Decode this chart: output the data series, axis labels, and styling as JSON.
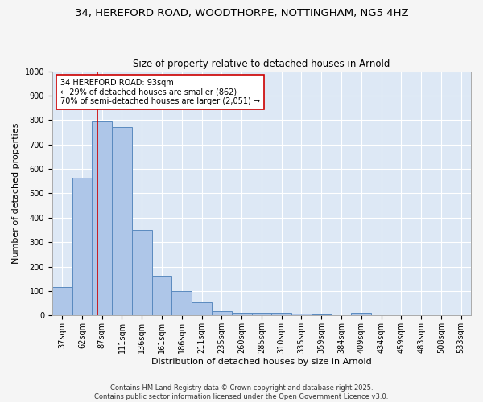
{
  "title_line1": "34, HEREFORD ROAD, WOODTHORPE, NOTTINGHAM, NG5 4HZ",
  "title_line2": "Size of property relative to detached houses in Arnold",
  "xlabel": "Distribution of detached houses by size in Arnold",
  "ylabel": "Number of detached properties",
  "categories": [
    "37sqm",
    "62sqm",
    "87sqm",
    "111sqm",
    "136sqm",
    "161sqm",
    "186sqm",
    "211sqm",
    "235sqm",
    "260sqm",
    "285sqm",
    "310sqm",
    "335sqm",
    "359sqm",
    "384sqm",
    "409sqm",
    "434sqm",
    "459sqm",
    "483sqm",
    "508sqm",
    "533sqm"
  ],
  "values": [
    115,
    565,
    795,
    770,
    350,
    163,
    100,
    53,
    18,
    12,
    10,
    10,
    8,
    5,
    2,
    10,
    2,
    2,
    2,
    2,
    2
  ],
  "bar_color": "#aec6e8",
  "bar_edge_color": "#5a8abf",
  "subject_line_color": "#cc0000",
  "annotation_text": "34 HEREFORD ROAD: 93sqm\n← 29% of detached houses are smaller (862)\n70% of semi-detached houses are larger (2,051) →",
  "annotation_box_color": "#ffffff",
  "annotation_box_edge": "#cc0000",
  "ylim": [
    0,
    1000
  ],
  "yticks": [
    0,
    100,
    200,
    300,
    400,
    500,
    600,
    700,
    800,
    900,
    1000
  ],
  "bg_color": "#dde8f5",
  "fig_color": "#f5f5f5",
  "grid_color": "#ffffff",
  "footnote": "Contains HM Land Registry data © Crown copyright and database right 2025.\nContains public sector information licensed under the Open Government Licence v3.0.",
  "title_fontsize": 9.5,
  "subtitle_fontsize": 8.5,
  "tick_fontsize": 7,
  "label_fontsize": 8,
  "annot_fontsize": 7,
  "footnote_fontsize": 6
}
